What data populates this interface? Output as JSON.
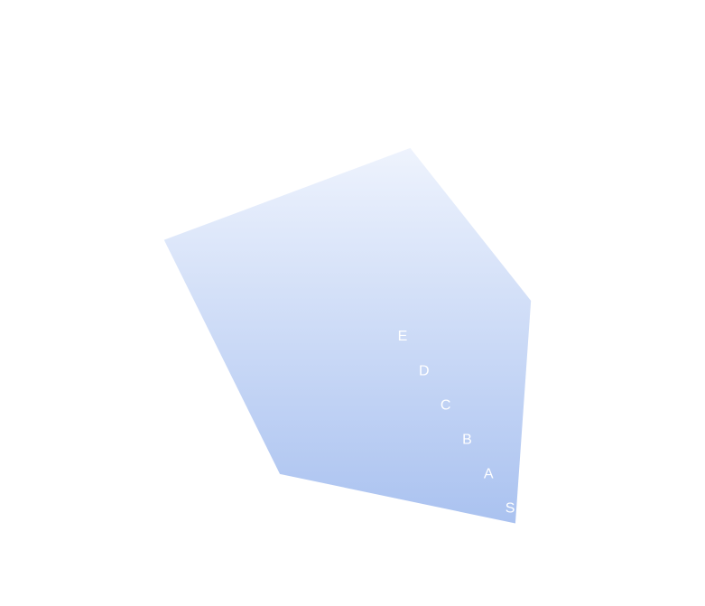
{
  "chart_data": {
    "type": "radar",
    "values": [
      5.5,
      4.5,
      6.2,
      4.6,
      3.4
    ],
    "ylim": [
      0,
      6.5
    ],
    "yticks": [
      {
        "value": 0,
        "label": "E"
      },
      {
        "value": 1,
        "label": "D"
      },
      {
        "value": 2,
        "label": "C"
      },
      {
        "value": 3,
        "label": "B"
      },
      {
        "value": 4,
        "label": "A"
      },
      {
        "value": 5,
        "label": "S"
      }
    ],
    "gradient": [
      "#eef3fd",
      "#aac2f0"
    ]
  }
}
